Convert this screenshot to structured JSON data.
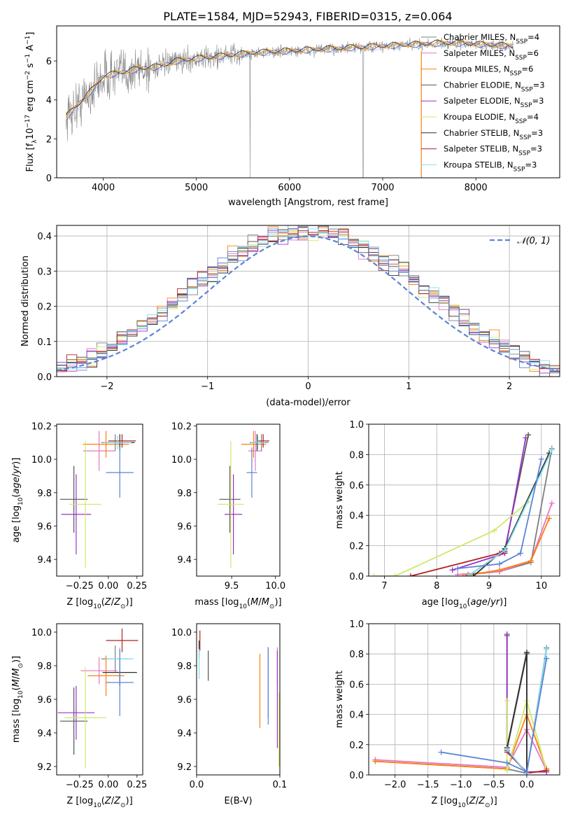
{
  "title": "PLATE=1584, MJD=52943, FIBERID=0315, z=0.064",
  "colors": {
    "chabrier_miles": "#7f7f7f",
    "salpeter_miles": "#e377c2",
    "kroupa_miles": "#ff7f0e",
    "chabrier_elodie": "#555555",
    "salpeter_elodie": "#9b30c8",
    "kroupa_elodie": "#cfe86a",
    "chabrier_stelib": "#2f2f2f",
    "salpeter_stelib": "#b22222",
    "kroupa_stelib": "#7fdff0",
    "model_blue": "#5b84d6"
  },
  "chart_data": [
    {
      "id": "spectrum",
      "type": "line",
      "xlabel": "wavelength [Angstrom, rest frame]",
      "ylabel": "Flux [f_λ 10^-17 erg cm^-2 s^-1 A^-1]",
      "xlim": [
        3500,
        8900
      ],
      "ylim": [
        0,
        7.8
      ],
      "xticks": [
        4000,
        5000,
        6000,
        7000,
        8000
      ],
      "yticks": [
        0,
        2,
        4,
        6
      ],
      "grid": false,
      "legend_position": "right",
      "continuum": {
        "x": [
          3600,
          3700,
          3800,
          3900,
          4000,
          4100,
          4200,
          4300,
          4400,
          4600,
          4800,
          5000,
          5200,
          5400,
          5600,
          5800,
          6000,
          6200,
          6400,
          6600,
          6800,
          7000,
          7200,
          7400,
          7600,
          7800,
          8000,
          8200,
          8400
        ],
        "y": [
          3.1,
          3.6,
          4.1,
          4.6,
          5.2,
          5.3,
          5.4,
          5.5,
          5.6,
          5.7,
          6.0,
          6.1,
          6.2,
          6.3,
          6.4,
          6.45,
          6.5,
          6.55,
          6.6,
          6.65,
          6.7,
          6.75,
          6.8,
          6.85,
          6.9,
          6.9,
          6.85,
          6.8,
          6.75
        ]
      },
      "legend": [
        {
          "label": "Chabrier MILES, N_SSP=4",
          "color_key": "chabrier_miles"
        },
        {
          "label": "Salpeter MILES, N_SSP=6",
          "color_key": "salpeter_miles"
        },
        {
          "label": "Kroupa MILES, N_SSP=6",
          "color_key": "kroupa_miles"
        },
        {
          "label": "Chabrier ELODIE, N_SSP=3",
          "color_key": "chabrier_elodie"
        },
        {
          "label": "Salpeter ELODIE, N_SSP=3",
          "color_key": "salpeter_elodie"
        },
        {
          "label": "Kroupa ELODIE, N_SSP=4",
          "color_key": "kroupa_elodie"
        },
        {
          "label": "Chabrier STELIB, N_SSP=3",
          "color_key": "chabrier_stelib"
        },
        {
          "label": "Salpeter STELIB, N_SSP=3",
          "color_key": "salpeter_stelib"
        },
        {
          "label": "Kroupa STELIB, N_SSP=3",
          "color_key": "kroupa_stelib"
        }
      ]
    },
    {
      "id": "residuals",
      "type": "line",
      "xlabel": "(data-model)/error",
      "ylabel": "Normed distribution",
      "xlim": [
        -2.5,
        2.5
      ],
      "ylim": [
        0,
        0.43
      ],
      "xticks": [
        -2,
        -1,
        0,
        1,
        2
      ],
      "yticks": [
        0.0,
        0.1,
        0.2,
        0.3,
        0.4
      ],
      "grid": true,
      "legend_position": "top-right",
      "gaussian_label": "N(0, 1)"
    },
    {
      "id": "age_vs_Z",
      "type": "scatter",
      "xlabel": "Z [log10(Z/Z_sun)]",
      "ylabel": "age [log10(age/yr)]",
      "xlim": [
        -0.45,
        0.3
      ],
      "ylim": [
        9.3,
        10.21
      ],
      "xticks": [
        -0.25,
        0.0,
        0.25
      ],
      "yticks": [
        9.4,
        9.6,
        9.8,
        10.0,
        10.2
      ],
      "points": [
        {
          "color_key": "chabrier_miles",
          "x": 0.06,
          "xerr": 0.12,
          "y": 10.1,
          "yerr": 0.05
        },
        {
          "color_key": "salpeter_miles",
          "x": -0.08,
          "xerr": 0.14,
          "y": 10.05,
          "yerr": 0.12
        },
        {
          "color_key": "kroupa_miles",
          "x": -0.02,
          "xerr": 0.2,
          "y": 10.09,
          "yerr": 0.08
        },
        {
          "color_key": "chabrier_elodie",
          "x": -0.3,
          "xerr": 0.12,
          "y": 9.76,
          "yerr": 0.2
        },
        {
          "color_key": "salpeter_elodie",
          "x": -0.28,
          "xerr": 0.13,
          "y": 9.67,
          "yerr": 0.24
        },
        {
          "color_key": "kroupa_elodie",
          "x": -0.2,
          "xerr": 0.14,
          "y": 9.73,
          "yerr": 0.38
        },
        {
          "color_key": "chabrier_stelib",
          "x": 0.1,
          "xerr": 0.13,
          "y": 10.1,
          "yerr": 0.05
        },
        {
          "color_key": "salpeter_stelib",
          "x": 0.12,
          "xerr": 0.12,
          "y": 10.11,
          "yerr": 0.04
        },
        {
          "color_key": "kroupa_stelib",
          "x": 0.08,
          "xerr": 0.12,
          "y": 10.1,
          "yerr": 0.04
        },
        {
          "color_key": "model_blue",
          "x": 0.1,
          "xerr": 0.12,
          "y": 9.92,
          "yerr": 0.15
        }
      ]
    },
    {
      "id": "age_vs_mass",
      "type": "scatter",
      "xlabel": "mass [log10(M/M_sun)]",
      "ylabel": "",
      "xlim": [
        9.1,
        10.05
      ],
      "ylim": [
        9.3,
        10.21
      ],
      "xticks": [
        9.5,
        10.0
      ],
      "yticks": [
        9.4,
        9.6,
        9.8,
        10.0,
        10.2
      ],
      "points": [
        {
          "color_key": "chabrier_miles",
          "x": 9.84,
          "xerr": 0.08,
          "y": 10.1,
          "yerr": 0.05
        },
        {
          "color_key": "salpeter_miles",
          "x": 9.77,
          "xerr": 0.08,
          "y": 10.05,
          "yerr": 0.12
        },
        {
          "color_key": "kroupa_miles",
          "x": 9.75,
          "xerr": 0.14,
          "y": 10.09,
          "yerr": 0.08
        },
        {
          "color_key": "chabrier_elodie",
          "x": 9.48,
          "xerr": 0.12,
          "y": 9.76,
          "yerr": 0.2
        },
        {
          "color_key": "salpeter_elodie",
          "x": 9.52,
          "xerr": 0.1,
          "y": 9.67,
          "yerr": 0.24
        },
        {
          "color_key": "kroupa_elodie",
          "x": 9.49,
          "xerr": 0.15,
          "y": 9.73,
          "yerr": 0.38
        },
        {
          "color_key": "chabrier_stelib",
          "x": 9.79,
          "xerr": 0.08,
          "y": 10.1,
          "yerr": 0.05
        },
        {
          "color_key": "salpeter_stelib",
          "x": 9.86,
          "xerr": 0.07,
          "y": 10.11,
          "yerr": 0.04
        },
        {
          "color_key": "kroupa_stelib",
          "x": 9.8,
          "xerr": 0.08,
          "y": 10.1,
          "yerr": 0.04
        },
        {
          "color_key": "model_blue",
          "x": 9.73,
          "xerr": 0.06,
          "y": 9.92,
          "yerr": 0.15
        }
      ]
    },
    {
      "id": "weight_vs_age",
      "type": "line",
      "xlabel": "age [log10(age/yr)]",
      "ylabel": "mass weight",
      "xlim": [
        6.7,
        10.35
      ],
      "ylim": [
        0,
        1.0
      ],
      "xticks": [
        7,
        8,
        9,
        10
      ],
      "yticks": [
        0.0,
        0.2,
        0.4,
        0.6,
        0.8,
        1.0
      ],
      "grid": true,
      "series": [
        {
          "color_key": "chabrier_miles",
          "x": [
            8.6,
            9.2,
            9.8,
            10.2
          ],
          "y": [
            0.01,
            0.03,
            0.09,
            0.84
          ]
        },
        {
          "color_key": "salpeter_miles",
          "x": [
            8.4,
            9.2,
            9.8,
            10.2
          ],
          "y": [
            0.01,
            0.03,
            0.1,
            0.48
          ]
        },
        {
          "color_key": "kroupa_miles",
          "x": [
            8.5,
            9.2,
            9.8,
            10.15
          ],
          "y": [
            0.0,
            0.04,
            0.1,
            0.38
          ]
        },
        {
          "color_key": "chabrier_elodie",
          "x": [
            8.6,
            9.3,
            9.75
          ],
          "y": [
            0.0,
            0.17,
            0.93
          ]
        },
        {
          "color_key": "salpeter_elodie",
          "x": [
            8.3,
            9.3,
            9.7
          ],
          "y": [
            0.04,
            0.15,
            0.91
          ]
        },
        {
          "color_key": "kroupa_elodie",
          "x": [
            6.8,
            7.2,
            9.1,
            9.75
          ],
          "y": [
            0.0,
            0.0,
            0.3,
            0.49
          ]
        },
        {
          "color_key": "chabrier_stelib",
          "x": [
            8.7,
            9.3,
            10.15
          ],
          "y": [
            0.0,
            0.18,
            0.81
          ]
        },
        {
          "color_key": "salpeter_stelib",
          "x": [
            7.5,
            9.2,
            9.3
          ],
          "y": [
            0.0,
            0.15,
            0.16
          ]
        },
        {
          "color_key": "kroupa_stelib",
          "x": [
            8.6,
            9.3,
            10.2
          ],
          "y": [
            0.0,
            0.17,
            0.83
          ]
        },
        {
          "color_key": "model_blue",
          "x": [
            8.4,
            9.2,
            9.6,
            10.0
          ],
          "y": [
            0.05,
            0.08,
            0.15,
            0.77
          ]
        }
      ]
    },
    {
      "id": "mass_vs_Z",
      "type": "scatter",
      "xlabel": "Z [log10(Z/Z_sun)]",
      "ylabel": "mass [log10(M/M_sun)]",
      "xlim": [
        -0.45,
        0.3
      ],
      "ylim": [
        9.15,
        10.05
      ],
      "xticks": [
        -0.25,
        0.0,
        0.25
      ],
      "yticks": [
        9.2,
        9.4,
        9.6,
        9.8,
        10.0
      ],
      "points": [
        {
          "color_key": "chabrier_miles",
          "x": 0.06,
          "xerr": 0.12,
          "y": 9.84,
          "yerr": 0.08
        },
        {
          "color_key": "salpeter_miles",
          "x": -0.08,
          "xerr": 0.16,
          "y": 9.77,
          "yerr": 0.08
        },
        {
          "color_key": "kroupa_miles",
          "x": -0.02,
          "xerr": 0.16,
          "y": 9.74,
          "yerr": 0.12
        },
        {
          "color_key": "chabrier_elodie",
          "x": -0.3,
          "xerr": 0.12,
          "y": 9.47,
          "yerr": 0.2
        },
        {
          "color_key": "salpeter_elodie",
          "x": -0.28,
          "xerr": 0.16,
          "y": 9.52,
          "yerr": 0.16
        },
        {
          "color_key": "kroupa_elodie",
          "x": -0.2,
          "xerr": 0.18,
          "y": 9.49,
          "yerr": 0.3
        },
        {
          "color_key": "chabrier_stelib",
          "x": 0.1,
          "xerr": 0.15,
          "y": 9.76,
          "yerr": 0.08
        },
        {
          "color_key": "salpeter_stelib",
          "x": 0.12,
          "xerr": 0.14,
          "y": 9.95,
          "yerr": 0.07
        },
        {
          "color_key": "kroupa_stelib",
          "x": 0.1,
          "xerr": 0.12,
          "y": 9.84,
          "yerr": 0.07
        },
        {
          "color_key": "model_blue",
          "x": 0.1,
          "xerr": 0.12,
          "y": 9.7,
          "yerr": 0.2
        }
      ]
    },
    {
      "id": "mass_vs_ebv",
      "type": "scatter",
      "xlabel": "E(B-V)",
      "ylabel": "",
      "xlim": [
        0.0,
        0.1
      ],
      "ylim": [
        9.15,
        10.05
      ],
      "xticks": [
        0.0,
        0.1
      ],
      "yticks": [
        9.2,
        9.4,
        9.6,
        9.8,
        10.0
      ],
      "points": [
        {
          "color_key": "chabrier_miles",
          "x": 0.086,
          "y": 9.7,
          "yerr": 0.21
        },
        {
          "color_key": "salpeter_miles",
          "x": 0.097,
          "y": 9.8,
          "yerr": 0.11
        },
        {
          "color_key": "kroupa_miles",
          "x": 0.076,
          "y": 9.65,
          "yerr": 0.22
        },
        {
          "color_key": "chabrier_elodie",
          "x": 0.014,
          "y": 9.8,
          "yerr": 0.09
        },
        {
          "color_key": "salpeter_elodie",
          "x": 0.097,
          "y": 9.6,
          "yerr": 0.29
        },
        {
          "color_key": "kroupa_elodie",
          "x": 0.099,
          "y": 9.42,
          "yerr": 0.22
        },
        {
          "color_key": "chabrier_stelib",
          "x": 0.003,
          "y": 9.9,
          "yerr": 0.05
        },
        {
          "color_key": "salpeter_stelib",
          "x": 0.004,
          "y": 9.95,
          "yerr": 0.06
        },
        {
          "color_key": "kroupa_stelib",
          "x": 0.003,
          "y": 9.81,
          "yerr": 0.09
        },
        {
          "color_key": "model_blue",
          "x": 0.086,
          "y": 9.68,
          "yerr": 0.23
        }
      ]
    },
    {
      "id": "weight_vs_Z",
      "type": "line",
      "xlabel": "Z [log10(Z/Z_sun)]",
      "ylabel": "mass weight",
      "xlim": [
        -2.4,
        0.5
      ],
      "ylim": [
        0,
        1.0
      ],
      "xticks": [
        -2.0,
        -1.5,
        -1.0,
        -0.5,
        0.0
      ],
      "yticks": [
        0.0,
        0.2,
        0.4,
        0.6,
        0.8,
        1.0
      ],
      "grid": true,
      "series": [
        {
          "color_key": "chabrier_miles",
          "x": [
            -2.3,
            -0.3,
            0.0,
            0.3
          ],
          "y": [
            0.09,
            0.04,
            0.01,
            0.84
          ]
        },
        {
          "color_key": "salpeter_miles",
          "x": [
            -2.3,
            -0.3,
            0.0,
            0.3
          ],
          "y": [
            0.1,
            0.05,
            0.3,
            0.03
          ]
        },
        {
          "color_key": "kroupa_miles",
          "x": [
            -2.3,
            -0.3,
            0.0,
            0.3
          ],
          "y": [
            0.09,
            0.04,
            0.4,
            0.04
          ]
        },
        {
          "color_key": "chabrier_elodie",
          "x": [
            -0.3,
            -0.3,
            0.0,
            0.0
          ],
          "y": [
            0.93,
            0.17,
            0.8,
            0.01
          ]
        },
        {
          "color_key": "salpeter_elodie",
          "x": [
            -0.3,
            -0.3,
            0.0,
            0.3
          ],
          "y": [
            0.92,
            0.15,
            0.02,
            0.02
          ]
        },
        {
          "color_key": "kroupa_elodie",
          "x": [
            -0.3,
            -0.3,
            0.0,
            0.3
          ],
          "y": [
            0.49,
            0.03,
            0.49,
            0.03
          ]
        },
        {
          "color_key": "chabrier_stelib",
          "x": [
            -0.3,
            0.0,
            0.0
          ],
          "y": [
            0.18,
            0.81,
            0.01
          ]
        },
        {
          "color_key": "salpeter_stelib",
          "x": [
            -0.3,
            0.0,
            0.3
          ],
          "y": [
            0.16,
            0.01,
            0.03
          ]
        },
        {
          "color_key": "kroupa_stelib",
          "x": [
            -0.3,
            0.0,
            0.3
          ],
          "y": [
            0.17,
            0.01,
            0.83
          ]
        },
        {
          "color_key": "model_blue",
          "x": [
            -1.3,
            -0.3,
            0.0,
            0.3
          ],
          "y": [
            0.15,
            0.08,
            0.02,
            0.77
          ]
        }
      ]
    }
  ]
}
